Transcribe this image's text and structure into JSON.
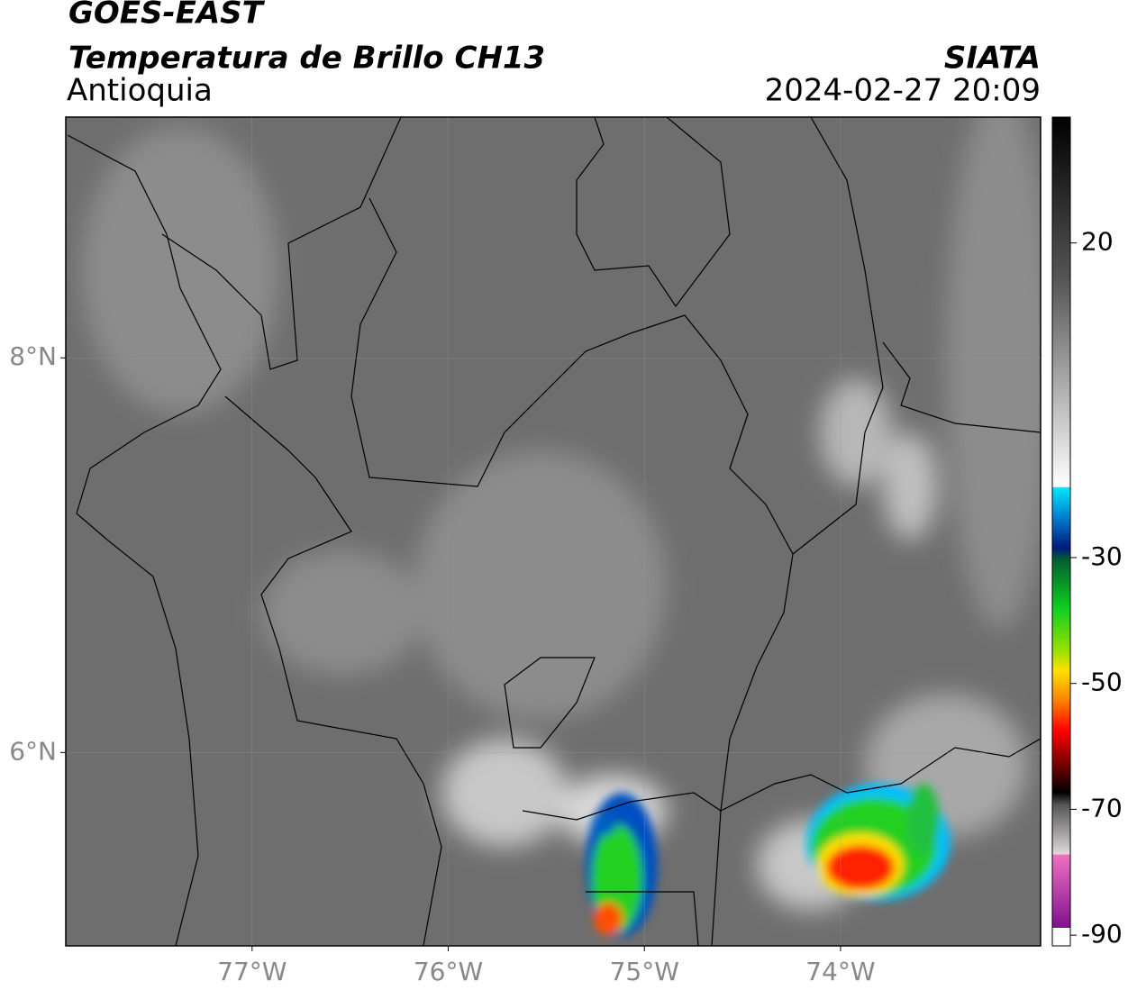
{
  "chart_data": {
    "type": "map",
    "title": "GOES-EAST",
    "subtitle": "Temperatura de Brillo CH13",
    "region": "Antioquia",
    "source": "SIATA",
    "datetime": "2024-02-27 20:09",
    "xlim": [
      -77.95,
      -72.98
    ],
    "ylim": [
      5.02,
      9.22
    ],
    "xticks": [
      {
        "value": -77,
        "label": "77°W"
      },
      {
        "value": -76,
        "label": "76°W"
      },
      {
        "value": -75,
        "label": "75°W"
      },
      {
        "value": -74,
        "label": "74°W"
      }
    ],
    "yticks": [
      {
        "value": 6,
        "label": "6°N"
      },
      {
        "value": 8,
        "label": "8°N"
      }
    ],
    "clim": [
      -91.7,
      40
    ],
    "cticks": [
      20,
      -30,
      -50,
      -70,
      -90
    ],
    "grid": true
  }
}
